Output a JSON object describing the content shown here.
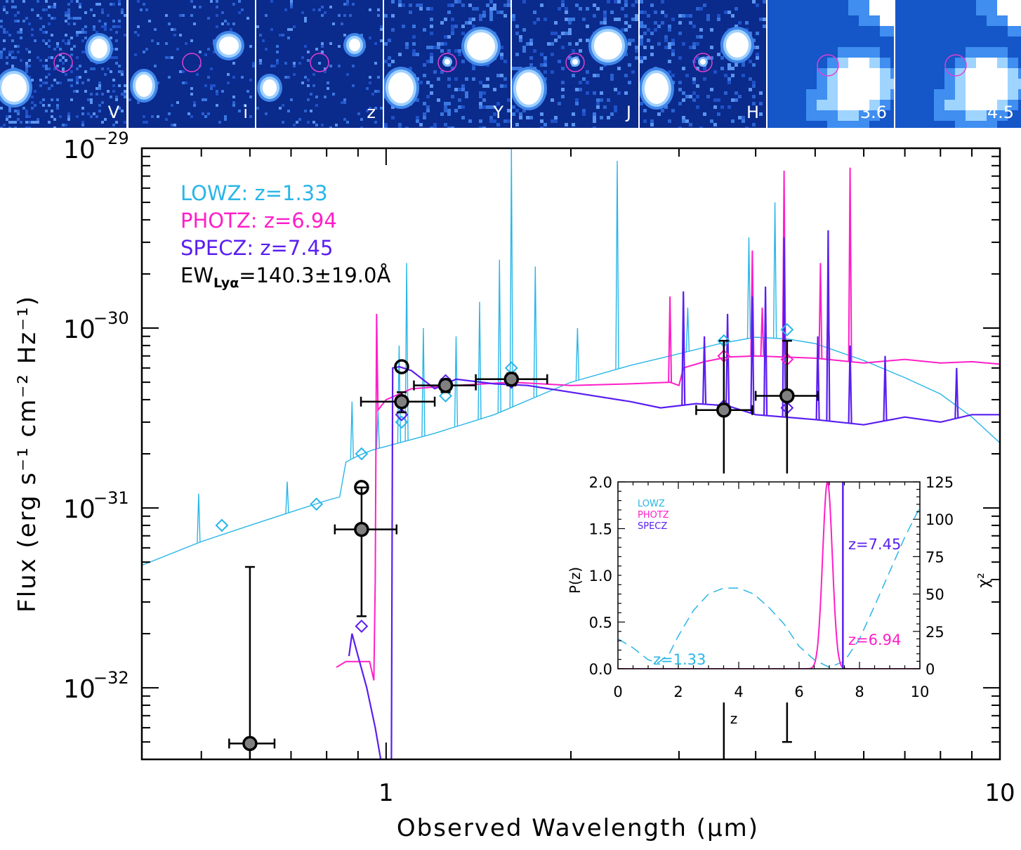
{
  "stamps": [
    {
      "band": "V",
      "kind": "hst"
    },
    {
      "band": "i",
      "kind": "hst"
    },
    {
      "band": "z",
      "kind": "hst"
    },
    {
      "band": "Y",
      "kind": "hst"
    },
    {
      "band": "J",
      "kind": "hst"
    },
    {
      "band": "H",
      "kind": "hst"
    },
    {
      "band": "3.6",
      "kind": "irac"
    },
    {
      "band": "4.5",
      "kind": "irac"
    }
  ],
  "colors": {
    "lowz": "#29b6e8",
    "photz": "#ff1fc8",
    "specz": "#5a1ef0",
    "stamp_bg": "#0a2a8c",
    "aperture": "#e040d0"
  },
  "chart_data": [
    {
      "type": "scatter",
      "title": "",
      "xlabel": "Observed Wavelength (μm)",
      "ylabel": "Flux (erg s⁻¹ cm⁻² Hz⁻¹)",
      "xscale": "log",
      "yscale": "log",
      "xlim": [
        0.4,
        10
      ],
      "ylim": [
        4e-33,
        1e-29
      ],
      "x_tick_labels": [
        {
          "value": 1,
          "label": "1"
        },
        {
          "value": 10,
          "label": "10"
        }
      ],
      "y_tick_labels": [
        {
          "value": 1e-29,
          "base": "10",
          "exp": "−29"
        },
        {
          "value": 1e-30,
          "base": "10",
          "exp": "−30"
        },
        {
          "value": 1e-31,
          "base": "10",
          "exp": "−31"
        },
        {
          "value": 1e-32,
          "base": "10",
          "exp": "−32"
        }
      ],
      "legend": [
        {
          "key": "lowz",
          "text": "LOWZ:  z=1.33"
        },
        {
          "key": "photz",
          "text": "PHOTZ:  z=6.94"
        },
        {
          "key": "specz",
          "text": "SPECZ:  z=7.45"
        }
      ],
      "ew_label": {
        "prefix": "EW",
        "sub": "Lyα",
        "value": "=140.3±19.0Å"
      },
      "legend_position": "top-left",
      "observed": [
        {
          "x": 0.6,
          "y": 4.9e-33,
          "xerr": [
            0.555,
            0.658
          ],
          "ylo": 4e-33,
          "yhi": 4.7e-32
        },
        {
          "x": 0.912,
          "y": 7.6e-32,
          "xerr": [
            0.825,
            1.04
          ],
          "ylo": 2.5e-32,
          "yhi": 1.3e-31
        },
        {
          "x": 1.06,
          "y": 3.9e-31,
          "xerr": [
            0.91,
            1.2
          ],
          "ylo": 3.4e-31,
          "yhi": 4.4e-31
        },
        {
          "x": 1.25,
          "y": 4.8e-31,
          "xerr": [
            1.11,
            1.4
          ],
          "ylo": 4.4e-31,
          "yhi": 5.2e-31
        },
        {
          "x": 1.6,
          "y": 5.2e-31,
          "xerr": [
            1.4,
            1.83
          ],
          "ylo": 4.8e-31,
          "yhi": 5.6e-31
        },
        {
          "x": 3.55,
          "y": 3.5e-31,
          "xerr": [
            3.2,
            3.95
          ],
          "ylo": 4e-33,
          "yhi": 8.5e-31
        },
        {
          "x": 4.5,
          "y": 4.2e-31,
          "xerr": [
            4.0,
            5.05
          ],
          "ylo": 5e-33,
          "yhi": 8.5e-31
        }
      ],
      "open_points": [
        {
          "x": 0.912,
          "y": 1.3e-31
        },
        {
          "x": 1.06,
          "y": 6.1e-31
        }
      ],
      "lowz_model_points": [
        {
          "x": 0.54,
          "y": 8e-32
        },
        {
          "x": 0.77,
          "y": 1.05e-31
        },
        {
          "x": 0.912,
          "y": 2e-31
        },
        {
          "x": 1.06,
          "y": 3e-31
        },
        {
          "x": 1.25,
          "y": 4.2e-31
        },
        {
          "x": 1.6,
          "y": 6e-31
        },
        {
          "x": 3.55,
          "y": 8.5e-31
        },
        {
          "x": 4.5,
          "y": 9.8e-31
        }
      ],
      "photz_model_points": [
        {
          "x": 0.912,
          "y": 7.6e-32
        },
        {
          "x": 1.06,
          "y": 4e-31
        },
        {
          "x": 1.25,
          "y": 4.9e-31
        },
        {
          "x": 1.6,
          "y": 5e-31
        },
        {
          "x": 3.55,
          "y": 7e-31
        },
        {
          "x": 4.5,
          "y": 6.7e-31
        }
      ],
      "specz_model_points": [
        {
          "x": 0.912,
          "y": 2.2e-32
        },
        {
          "x": 1.06,
          "y": 3.3e-31
        },
        {
          "x": 1.25,
          "y": 5.1e-31
        },
        {
          "x": 1.6,
          "y": 5e-31
        },
        {
          "x": 3.55,
          "y": 3.7e-31
        },
        {
          "x": 4.5,
          "y": 3.6e-31
        }
      ],
      "lowz_continuum": [
        [
          0.4,
          4.8e-32
        ],
        [
          0.5,
          6.5e-32
        ],
        [
          0.6,
          8e-32
        ],
        [
          0.7,
          9.5e-32
        ],
        [
          0.8,
          1.1e-31
        ],
        [
          0.84,
          1.15e-31
        ],
        [
          0.86,
          1.8e-31
        ],
        [
          0.9,
          1.95e-31
        ],
        [
          0.95,
          2.1e-31
        ],
        [
          1.0,
          2.2e-31
        ],
        [
          1.2,
          2.6e-31
        ],
        [
          1.5,
          3.3e-31
        ],
        [
          1.8,
          4.3e-31
        ],
        [
          2.0,
          5e-31
        ],
        [
          2.5,
          6.2e-31
        ],
        [
          3.0,
          7.2e-31
        ],
        [
          3.5,
          8.2e-31
        ],
        [
          4.0,
          8.9e-31
        ],
        [
          4.5,
          8.7e-31
        ],
        [
          5.0,
          8.2e-31
        ],
        [
          6.0,
          6.6e-31
        ],
        [
          7.0,
          5.3e-31
        ],
        [
          8.0,
          4.3e-31
        ],
        [
          9.0,
          3.2e-31
        ],
        [
          10.0,
          2.3e-31
        ]
      ],
      "lowz_lines": [
        [
          0.495,
          1.2e-31
        ],
        [
          0.69,
          1.4e-31
        ],
        [
          0.88,
          3.9e-31
        ],
        [
          0.97,
          3.5e-31
        ],
        [
          1.05,
          8e-31
        ],
        [
          1.08,
          2.3e-30
        ],
        [
          1.15,
          1e-30
        ],
        [
          1.3,
          9e-31
        ],
        [
          1.42,
          1.4e-30
        ],
        [
          1.53,
          2.4e-30
        ],
        [
          1.6,
          1e-29
        ],
        [
          1.75,
          2.2e-30
        ],
        [
          2.05,
          1e-30
        ],
        [
          2.38,
          8.5e-30
        ],
        [
          3.1,
          1.3e-30
        ],
        [
          3.9,
          3.2e-30
        ],
        [
          4.3,
          5e-30
        ],
        [
          5.25,
          1.5e-30
        ]
      ],
      "photz_continuum": [
        [
          0.83,
          1.3e-32
        ],
        [
          0.86,
          1.4e-32
        ],
        [
          0.9,
          1.4e-32
        ],
        [
          0.94,
          1.4e-32
        ],
        [
          0.955,
          1.1e-32
        ],
        [
          0.96,
          4e-32
        ],
        [
          0.965,
          1.2e-30
        ],
        [
          0.97,
          3.5e-31
        ],
        [
          1.0,
          4e-31
        ],
        [
          1.1,
          4.6e-31
        ],
        [
          1.3,
          4.8e-31
        ],
        [
          1.6,
          5e-31
        ],
        [
          2.0,
          4.8e-31
        ],
        [
          2.5,
          4.9e-31
        ],
        [
          2.9,
          5e-31
        ],
        [
          3.0,
          4.8e-31
        ],
        [
          3.05,
          6e-31
        ],
        [
          3.3,
          6.5e-31
        ],
        [
          3.6,
          6.9e-31
        ],
        [
          4.0,
          7e-31
        ],
        [
          5.0,
          6.8e-31
        ],
        [
          6.0,
          6.4e-31
        ],
        [
          7.0,
          6.7e-31
        ],
        [
          8.0,
          6.4e-31
        ],
        [
          9.0,
          6.5e-31
        ],
        [
          10.0,
          6.3e-31
        ]
      ],
      "photz_lines": [
        [
          2.9,
          1.5e-30
        ],
        [
          3.95,
          2.7e-30
        ],
        [
          4.1,
          1.3e-30
        ],
        [
          4.45,
          7.5e-30
        ],
        [
          5.1,
          2.3e-30
        ],
        [
          5.25,
          1.6e-30
        ],
        [
          5.7,
          7.8e-30
        ]
      ],
      "specz_continuum": [
        [
          0.87,
          1.5e-32
        ],
        [
          0.88,
          2e-32
        ],
        [
          0.9,
          1.5e-32
        ],
        [
          0.93,
          1e-32
        ],
        [
          0.96,
          6e-33
        ],
        [
          0.98,
          4e-33
        ],
        [
          1.02,
          4e-33
        ],
        [
          1.025,
          6e-31
        ],
        [
          1.05,
          6.1e-31
        ],
        [
          1.1,
          5.8e-31
        ],
        [
          1.2,
          4.6e-31
        ],
        [
          1.3,
          5.2e-31
        ],
        [
          1.5,
          4.9e-31
        ],
        [
          1.7,
          4.8e-31
        ],
        [
          2.0,
          4.4e-31
        ],
        [
          2.5,
          3.9e-31
        ],
        [
          2.8,
          3.6e-31
        ],
        [
          3.2,
          3.8e-31
        ],
        [
          3.6,
          3.7e-31
        ],
        [
          4.0,
          3.3e-31
        ],
        [
          5.0,
          3.1e-31
        ],
        [
          6.0,
          2.9e-31
        ],
        [
          7.0,
          3.2e-31
        ],
        [
          8.0,
          3e-31
        ],
        [
          9.0,
          3.3e-31
        ],
        [
          10.0,
          3.3e-31
        ]
      ],
      "specz_lines": [
        [
          3.05,
          1.6e-30
        ],
        [
          3.3,
          9e-31
        ],
        [
          3.6,
          1.2e-30
        ],
        [
          3.95,
          1.5e-30
        ],
        [
          4.15,
          1.7e-30
        ],
        [
          4.45,
          3.2e-30
        ],
        [
          5.05,
          9e-31
        ],
        [
          5.25,
          3.5e-30
        ],
        [
          5.7,
          8e-31
        ],
        [
          6.5,
          7e-31
        ],
        [
          8.5,
          6e-31
        ]
      ]
    },
    {
      "type": "line",
      "title": "",
      "xlabel": "z",
      "ylabel_left": "P(z)",
      "ylabel_right": "χ²",
      "xlim": [
        0,
        10
      ],
      "ylim_left": [
        0,
        2.0
      ],
      "ylim_right": [
        0,
        125
      ],
      "x_ticks": [
        "0",
        "2",
        "4",
        "6",
        "8",
        "10"
      ],
      "y_ticks_left": [
        "0.0",
        "0.5",
        "1.0",
        "1.5",
        "2.0"
      ],
      "y_ticks_right": [
        "0",
        "25",
        "50",
        "75",
        "100",
        "125"
      ],
      "legend": [
        {
          "key": "lowz",
          "text": "LOWZ"
        },
        {
          "key": "photz",
          "text": "PHOTZ"
        },
        {
          "key": "specz",
          "text": "SPECZ"
        }
      ],
      "annotations": [
        {
          "key": "lowz",
          "text": "z=1.33"
        },
        {
          "key": "photz",
          "text": "z=6.94"
        },
        {
          "key": "specz",
          "text": "z=7.45"
        }
      ],
      "chi2_curve": [
        [
          0,
          20
        ],
        [
          0.5,
          14
        ],
        [
          1,
          6
        ],
        [
          1.33,
          4
        ],
        [
          1.7,
          10
        ],
        [
          2,
          22
        ],
        [
          2.5,
          39
        ],
        [
          3,
          50
        ],
        [
          3.5,
          54
        ],
        [
          4,
          54
        ],
        [
          4.5,
          50
        ],
        [
          5,
          41
        ],
        [
          5.5,
          30
        ],
        [
          6,
          15
        ],
        [
          6.5,
          6
        ],
        [
          7,
          1
        ],
        [
          7.5,
          5
        ],
        [
          8,
          20
        ],
        [
          8.5,
          42
        ],
        [
          9,
          65
        ],
        [
          9.5,
          88
        ],
        [
          10,
          108
        ]
      ],
      "pz_peak": {
        "center": 6.94,
        "sigma": 0.16,
        "height": 2.0
      },
      "specz_value": 7.45
    }
  ]
}
